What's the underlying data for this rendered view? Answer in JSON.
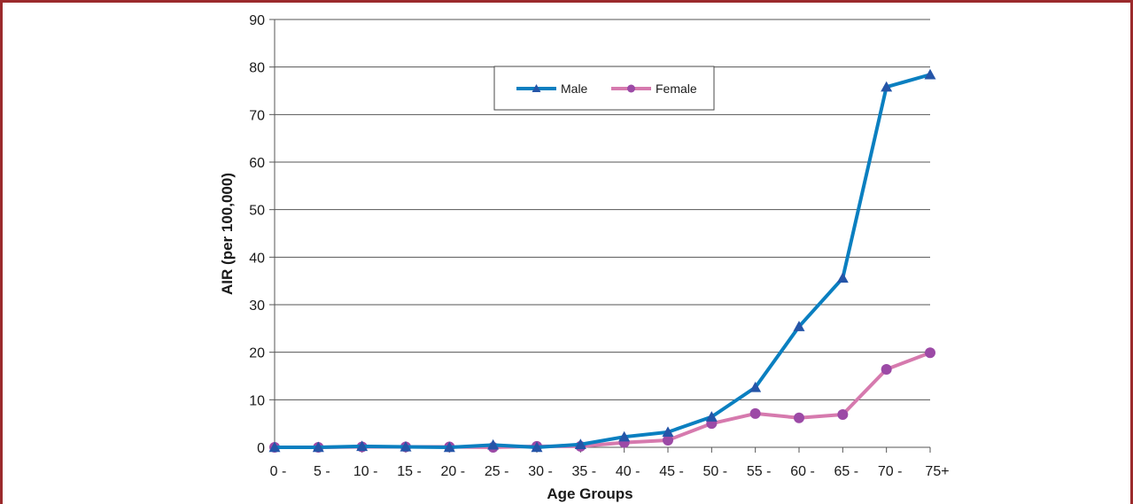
{
  "chart_data": {
    "type": "line",
    "title": "",
    "xlabel": "Age Groups",
    "ylabel": "AIR  (per  100,000)",
    "ylim": [
      0,
      90
    ],
    "yticks": [
      0,
      10,
      20,
      30,
      40,
      50,
      60,
      70,
      80,
      90
    ],
    "categories": [
      "0 -",
      "5 -",
      "10 -",
      "15 -",
      "20 -",
      "25 -",
      "30 -",
      "35 -",
      "40 -",
      "45 -",
      "50 -",
      "55 -",
      "60 -",
      "65 -",
      "70 -",
      "75+"
    ],
    "grid": true,
    "legend": "top-center",
    "series": [
      {
        "name": "Male",
        "color": "#0a7fc0",
        "marker": "triangle",
        "marker_color": "#2555a8",
        "values": [
          0,
          0,
          0.2,
          0.1,
          0,
          0.5,
          0,
          0.6,
          2.2,
          3.2,
          6.4,
          12.6,
          25.4,
          35.6,
          75.8,
          78.4
        ]
      },
      {
        "name": "Female",
        "color": "#d67aae",
        "marker": "circle",
        "marker_color": "#9c4aa6",
        "values": [
          0,
          0,
          0.1,
          0.1,
          0.1,
          0,
          0.2,
          0.2,
          1,
          1.5,
          5,
          7.1,
          6.2,
          6.9,
          16.4,
          19.9
        ]
      }
    ]
  }
}
